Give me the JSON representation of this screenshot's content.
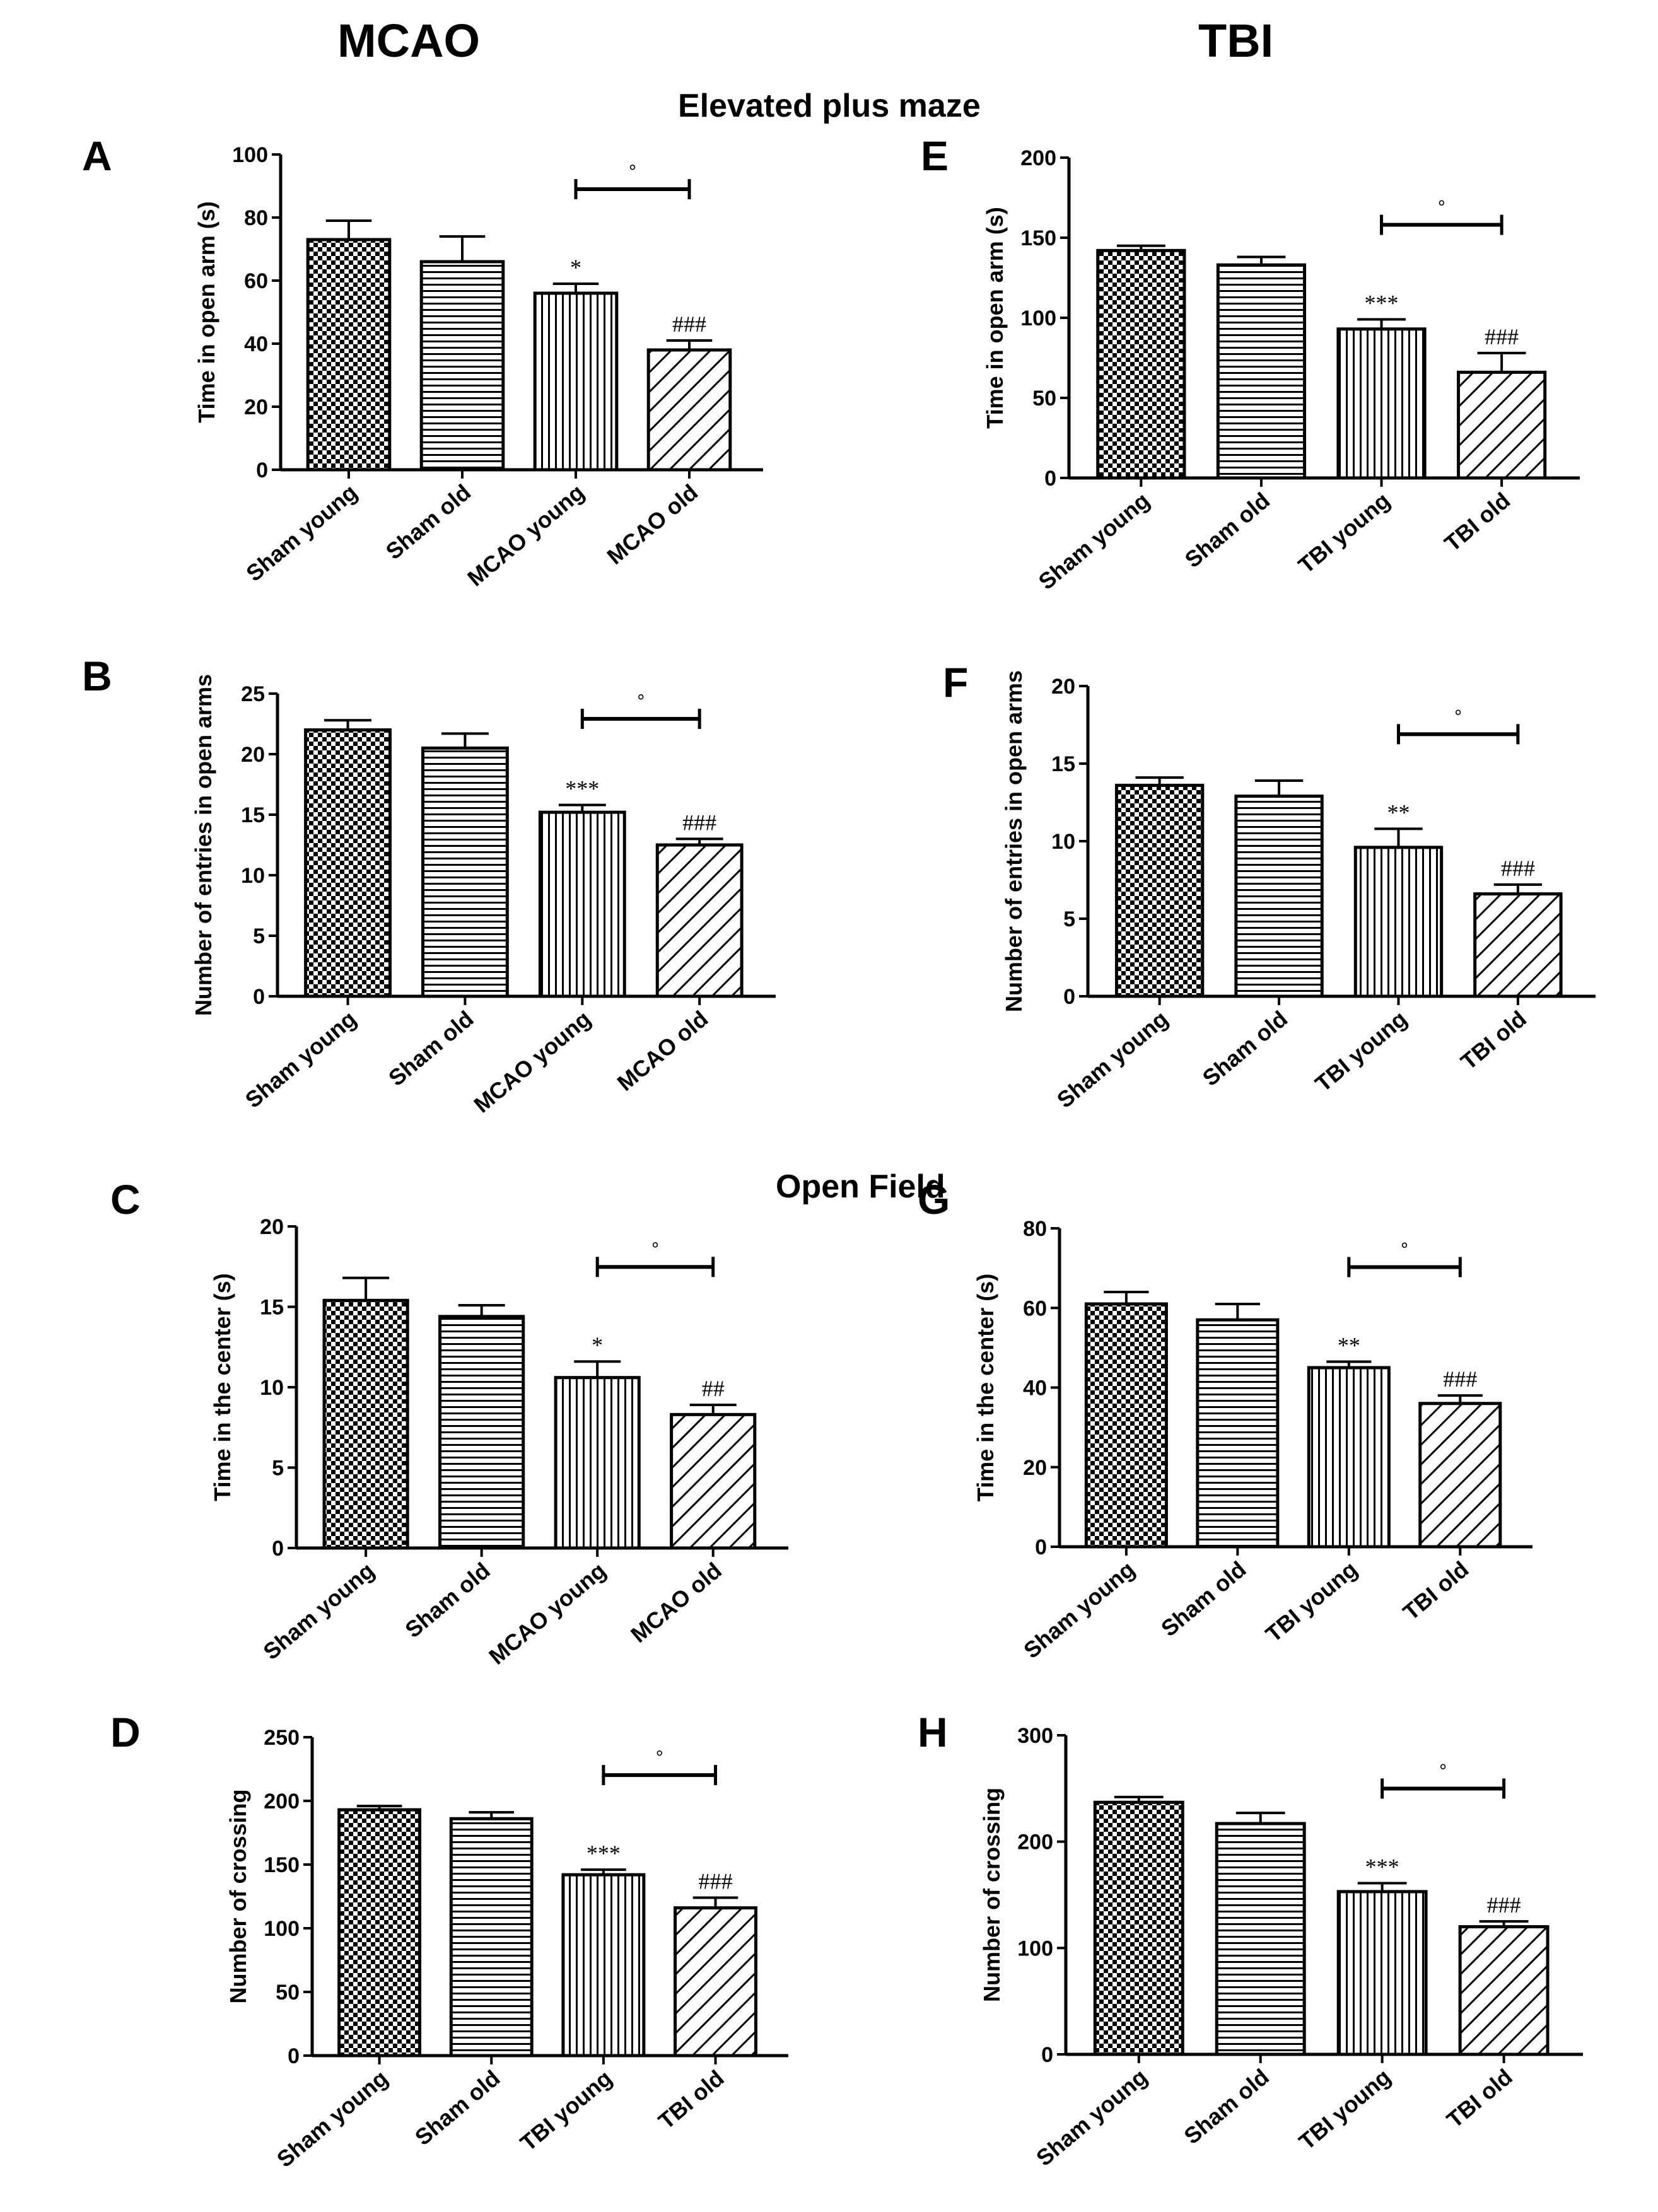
{
  "figure": {
    "column_titles": [
      "MCAO",
      "TBI"
    ],
    "section_titles": [
      "Elevated plus maze",
      "Open Field"
    ]
  },
  "chart_data": [
    {
      "panel": "A",
      "type": "bar",
      "categories": [
        "Sham young",
        "Sham old",
        "MCAO young",
        "MCAO old"
      ],
      "values": [
        73,
        66,
        56,
        38
      ],
      "errors": [
        6,
        8,
        3,
        3
      ],
      "ylabel": "Time in open arm (s)",
      "xlabel": "",
      "ylim": [
        0,
        100
      ],
      "yticks": [
        0,
        20,
        40,
        60,
        80,
        100
      ],
      "patterns": [
        "checker",
        "horizontal",
        "vertical",
        "diagonal"
      ],
      "annotations": [
        "",
        "",
        "*",
        "###"
      ],
      "bracket": {
        "from": 2,
        "to": 3,
        "label": "°"
      }
    },
    {
      "panel": "B",
      "type": "bar",
      "categories": [
        "Sham young",
        "Sham old",
        "MCAO young",
        "MCAO old"
      ],
      "values": [
        22,
        20.5,
        15.2,
        12.5
      ],
      "errors": [
        0.8,
        1.2,
        0.6,
        0.5
      ],
      "ylabel": "Number of entries in open arms",
      "xlabel": "",
      "ylim": [
        0,
        25
      ],
      "yticks": [
        0,
        5,
        10,
        15,
        20,
        25
      ],
      "patterns": [
        "checker",
        "horizontal",
        "vertical",
        "diagonal"
      ],
      "annotations": [
        "",
        "",
        "***",
        "###"
      ],
      "bracket": {
        "from": 2,
        "to": 3,
        "label": "°"
      }
    },
    {
      "panel": "C",
      "type": "bar",
      "categories": [
        "Sham young",
        "Sham old",
        "MCAO young",
        "MCAO old"
      ],
      "values": [
        15.4,
        14.4,
        10.6,
        8.3
      ],
      "errors": [
        1.4,
        0.7,
        1.0,
        0.6
      ],
      "ylabel": "Time in the center (s)",
      "xlabel": "",
      "ylim": [
        0,
        20
      ],
      "yticks": [
        0,
        5,
        10,
        15,
        20
      ],
      "patterns": [
        "checker",
        "horizontal",
        "vertical",
        "diagonal"
      ],
      "annotations": [
        "",
        "",
        "*",
        "##"
      ],
      "bracket": {
        "from": 2,
        "to": 3,
        "label": "°"
      }
    },
    {
      "panel": "D",
      "type": "bar",
      "categories": [
        "Sham young",
        "Sham old",
        "TBI young",
        "TBI old"
      ],
      "values": [
        193,
        186,
        142,
        116
      ],
      "errors": [
        3,
        5,
        4,
        8
      ],
      "ylabel": "Number of crossing",
      "xlabel": "",
      "ylim": [
        0,
        250
      ],
      "yticks": [
        0,
        50,
        100,
        150,
        200,
        250
      ],
      "patterns": [
        "checker",
        "horizontal",
        "vertical",
        "diagonal"
      ],
      "annotations": [
        "",
        "",
        "***",
        "###"
      ],
      "bracket": {
        "from": 2,
        "to": 3,
        "label": "°"
      }
    },
    {
      "panel": "E",
      "type": "bar",
      "categories": [
        "Sham young",
        "Sham old",
        "TBI young",
        "TBI old"
      ],
      "values": [
        142,
        133,
        93,
        66
      ],
      "errors": [
        3,
        5,
        6,
        12
      ],
      "ylabel": "Time in open arm (s)",
      "xlabel": "",
      "ylim": [
        0,
        200
      ],
      "yticks": [
        0,
        50,
        100,
        150,
        200
      ],
      "patterns": [
        "checker",
        "horizontal",
        "vertical",
        "diagonal"
      ],
      "annotations": [
        "",
        "",
        "***",
        "###"
      ],
      "bracket": {
        "from": 2,
        "to": 3,
        "label": "°"
      }
    },
    {
      "panel": "F",
      "type": "bar",
      "categories": [
        "Sham young",
        "Sham old",
        "TBI young",
        "TBI old"
      ],
      "values": [
        13.6,
        12.9,
        9.6,
        6.6
      ],
      "errors": [
        0.5,
        1.0,
        1.2,
        0.6
      ],
      "ylabel": "Number of entries in open arms",
      "xlabel": "",
      "ylim": [
        0,
        20
      ],
      "yticks": [
        0,
        5,
        10,
        15,
        20
      ],
      "patterns": [
        "checker",
        "horizontal",
        "vertical",
        "diagonal"
      ],
      "annotations": [
        "",
        "",
        "**",
        "###"
      ],
      "bracket": {
        "from": 2,
        "to": 3,
        "label": "°"
      }
    },
    {
      "panel": "G",
      "type": "bar",
      "categories": [
        "Sham young",
        "Sham old",
        "TBI young",
        "TBI old"
      ],
      "values": [
        61,
        57,
        45,
        36
      ],
      "errors": [
        3,
        4,
        1.5,
        2
      ],
      "ylabel": "Time in the center (s)",
      "xlabel": "",
      "ylim": [
        0,
        80
      ],
      "yticks": [
        0,
        20,
        40,
        60,
        80
      ],
      "patterns": [
        "checker",
        "horizontal",
        "vertical",
        "diagonal"
      ],
      "annotations": [
        "",
        "",
        "**",
        "###"
      ],
      "bracket": {
        "from": 2,
        "to": 3,
        "label": "°"
      }
    },
    {
      "panel": "H",
      "type": "bar",
      "categories": [
        "Sham young",
        "Sham old",
        "TBI young",
        "TBI old"
      ],
      "values": [
        237,
        217,
        153,
        120
      ],
      "errors": [
        5,
        10,
        8,
        5
      ],
      "ylabel": "Number of crossing",
      "xlabel": "",
      "ylim": [
        0,
        300
      ],
      "yticks": [
        0,
        100,
        200,
        300
      ],
      "patterns": [
        "checker",
        "horizontal",
        "vertical",
        "diagonal"
      ],
      "annotations": [
        "",
        "",
        "***",
        "###"
      ],
      "bracket": {
        "from": 2,
        "to": 3,
        "label": "°"
      }
    }
  ]
}
